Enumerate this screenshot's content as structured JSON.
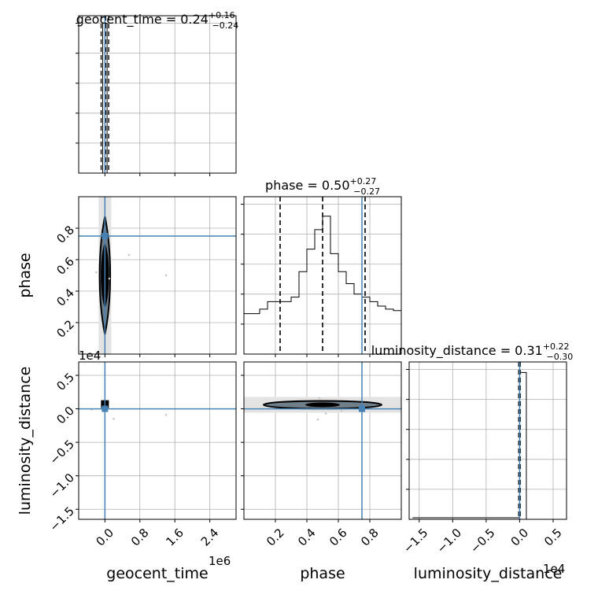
{
  "chart_data": {
    "type": "corner",
    "truth_color": "#4682b4",
    "parameters": [
      {
        "name": "geocent_time",
        "axis_label": "geocent_time",
        "title": "geocent_time = 0.24",
        "title_plus": "+0.16",
        "title_minus": "−0.24",
        "offset_label": "1e6",
        "xlim": [
          -600000,
          3000000
        ],
        "ticks": [
          0,
          800000,
          1600000,
          2400000
        ],
        "tick_labels": [
          "0.0",
          "0.8",
          "1.6",
          "2.4"
        ],
        "truth": 0,
        "quantiles": [
          -0.0,
          0.24,
          0.4
        ]
      },
      {
        "name": "phase",
        "axis_label": "phase",
        "title": "phase = 0.50",
        "title_plus": "+0.27",
        "title_minus": "−0.27",
        "xlim": [
          0.0,
          1.0
        ],
        "ticks": [
          0.2,
          0.4,
          0.6,
          0.8
        ],
        "tick_labels": [
          "0.2",
          "0.4",
          "0.6",
          "0.8"
        ],
        "truth": 0.75,
        "quantiles": [
          0.23,
          0.5,
          0.77
        ]
      },
      {
        "name": "luminosity_distance",
        "axis_label": "luminosity_distance",
        "title": "luminosity_distance = 0.31",
        "title_plus": "+0.22",
        "title_minus": "−0.30",
        "offset_label": "1e4",
        "xlim": [
          -16500,
          7000
        ],
        "ticks": [
          -15000,
          -10000,
          -5000,
          0,
          5000
        ],
        "tick_labels": [
          "−1.5",
          "−1.0",
          "−0.5",
          "0.0",
          "0.5"
        ],
        "truth": 0,
        "quantiles": [
          0,
          0.31,
          0.53
        ]
      }
    ],
    "hist_geocent_time": {
      "bin_edges": [
        -50000,
        50000
      ],
      "counts": [
        1.0
      ],
      "ylim": [
        0,
        1.0
      ]
    },
    "hist_phase": {
      "bin_edges": [
        0.0,
        0.05,
        0.1,
        0.15,
        0.2,
        0.25,
        0.3,
        0.35,
        0.4,
        0.45,
        0.5,
        0.55,
        0.6,
        0.65,
        0.7,
        0.75,
        0.8,
        0.85,
        0.9,
        0.95,
        1.0
      ],
      "counts": [
        0.27,
        0.27,
        0.3,
        0.35,
        0.35,
        0.35,
        0.38,
        0.55,
        0.7,
        0.83,
        0.92,
        0.67,
        0.55,
        0.47,
        0.4,
        0.38,
        0.35,
        0.32,
        0.3,
        0.29
      ],
      "ylim": [
        0,
        1.0
      ]
    },
    "hist_luminosity_distance": {
      "bin_edges": [
        -16000,
        -1000,
        0,
        1000
      ],
      "counts": [
        0,
        0.005,
        0.98
      ],
      "ylim": [
        0,
        1.0
      ]
    },
    "hist_ticks": [
      0.2,
      0.4,
      0.6,
      0.8,
      1.0
    ],
    "scatter_phase_vs_time": {
      "points": [
        [
          -200000,
          0.52
        ],
        [
          550000,
          0.63
        ],
        [
          1400000,
          0.5
        ],
        [
          100000,
          0.48
        ]
      ]
    },
    "scatter_dist_vs_time": {
      "points": [
        [
          -300000,
          -100
        ],
        [
          1400000,
          -900
        ],
        [
          200000,
          -1500
        ]
      ]
    },
    "scatter_dist_vs_phase": {
      "points": [
        [
          0.48,
          1600
        ],
        [
          0.47,
          -1600
        ],
        [
          0.52,
          -700
        ],
        [
          0.62,
          -300
        ]
      ]
    }
  }
}
